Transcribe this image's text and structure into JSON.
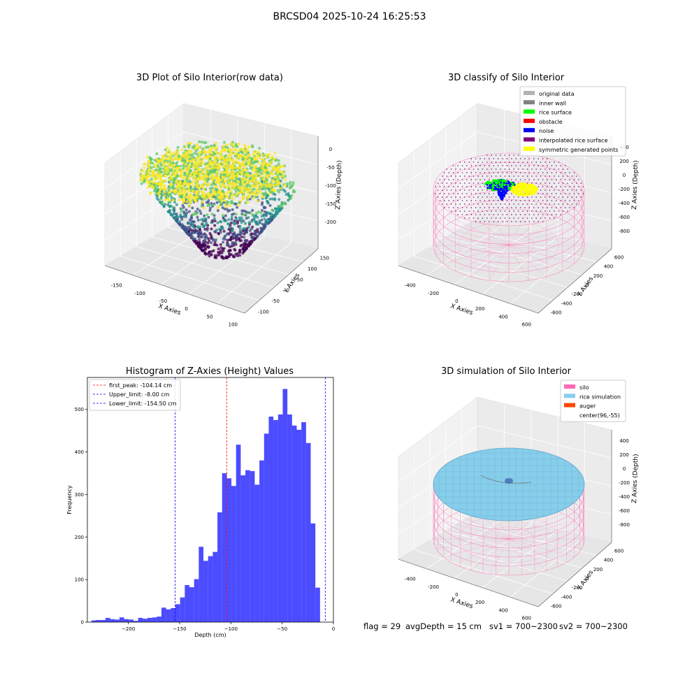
{
  "figure": {
    "title": "BRCSD04 2025-10-24 16:25:53"
  },
  "panels": {
    "raw": {
      "title": "3D Plot of Silo Interior(row data)",
      "xlabel": "X Axies",
      "ylabel": "Y Axies",
      "zlabel": "Z Axies (Depth)",
      "xticks": [
        "-150",
        "-100",
        "-50",
        "0",
        "50",
        "100"
      ],
      "yticks": [
        "-100",
        "-50",
        "0",
        "50",
        "100",
        "150"
      ],
      "zticks": [
        "0",
        "-50",
        "-100",
        "-150",
        "-200"
      ],
      "colormap": [
        "#440154",
        "#3b528b",
        "#21918c",
        "#5ec962",
        "#fde725"
      ]
    },
    "classify": {
      "title": "3D classify of Silo Interior",
      "xlabel": "X Axies",
      "ylabel": "Y Axies",
      "zlabel": "Z Axies (Depth)",
      "xticks": [
        "-400",
        "-200",
        "0",
        "200",
        "400",
        "600"
      ],
      "yticks": [
        "-600",
        "-400",
        "-200",
        "0",
        "200",
        "400",
        "600"
      ],
      "zticks": [
        "400",
        "200",
        "0",
        "-200",
        "-400",
        "-600",
        "-800"
      ],
      "legend": [
        {
          "label": "original data",
          "color": "#b3b3b3"
        },
        {
          "label": "inner wall",
          "color": "#808080"
        },
        {
          "label": "rice surface",
          "color": "#00ff00"
        },
        {
          "label": "obstacle",
          "color": "#ff0000"
        },
        {
          "label": "noise",
          "color": "#0000ff"
        },
        {
          "label": "interpolated rice surface",
          "color": "#800080"
        },
        {
          "label": "symmetric generated points",
          "color": "#ffff00"
        }
      ],
      "wall_color": "#ff69b4"
    },
    "simulation": {
      "title": "3D simulation of Silo Interior",
      "xlabel": "X Axies",
      "ylabel": "Y Axies",
      "zlabel": "Z Axies (Depth)",
      "xticks": [
        "-400",
        "-200",
        "0",
        "200",
        "400",
        "600"
      ],
      "yticks": [
        "-600",
        "-400",
        "-200",
        "0",
        "200",
        "400",
        "600"
      ],
      "zticks": [
        "400",
        "200",
        "0",
        "-200",
        "-400",
        "-600",
        "-800"
      ],
      "legend": [
        {
          "label": "silo",
          "color": "#ff69b4"
        },
        {
          "label": "rice simulation",
          "color": "#87ceeb"
        },
        {
          "label": "auger",
          "color": "#ff4500"
        },
        {
          "label": "center(96,-55)",
          "color": ""
        }
      ]
    }
  },
  "status": {
    "flag": "flag = 29",
    "avg_depth": "avgDepth = 15 cm",
    "sv1": "sv1 = 700~2300",
    "sv2": "sv2 = 700~2300"
  },
  "chart_data": [
    {
      "type": "histogram",
      "title": "Histogram of Z-Axies (Height) Values",
      "xlabel": "Depth (cm)",
      "ylabel": "Frequency",
      "xlim": [
        -240,
        0
      ],
      "ylim": [
        0,
        575
      ],
      "xticks": [
        -200,
        -150,
        -100,
        -50,
        0
      ],
      "yticks": [
        0,
        100,
        200,
        300,
        400,
        500
      ],
      "bar_color": "#0000ff",
      "bin_start": -236,
      "bin_width": 4.55,
      "values": [
        4,
        5,
        5,
        10,
        7,
        6,
        11,
        7,
        6,
        3,
        10,
        8,
        10,
        11,
        13,
        34,
        30,
        33,
        42,
        58,
        87,
        82,
        101,
        177,
        144,
        155,
        165,
        258,
        350,
        338,
        320,
        417,
        345,
        357,
        355,
        323,
        380,
        443,
        483,
        475,
        488,
        548,
        488,
        462,
        452,
        470,
        421,
        232,
        81
      ],
      "lines": [
        {
          "name": "first_peak: -104.14 cm",
          "x": -104.14,
          "color": "#ff0000"
        },
        {
          "name": "Upper_limit: -8.00 cm",
          "x": -8.0,
          "color": "#0000ff"
        },
        {
          "name": "Lower_limit: -154.50 cm",
          "x": -154.5,
          "color": "#0000ff"
        }
      ]
    }
  ]
}
